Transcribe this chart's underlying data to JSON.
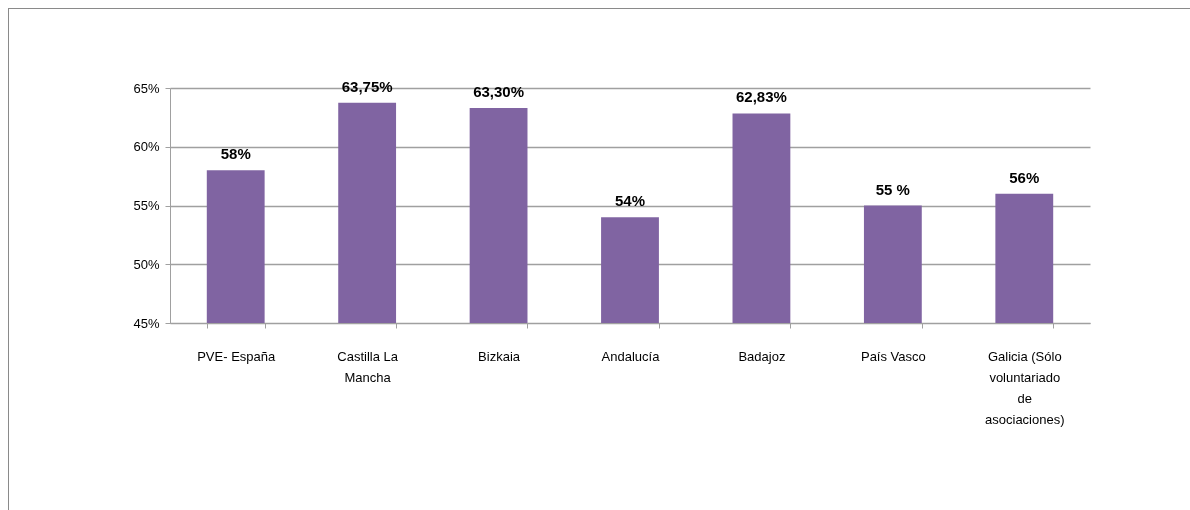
{
  "chart_data": {
    "type": "bar",
    "categories": [
      "PVE- España",
      "Castilla La Mancha",
      "Bizkaia",
      "Andalucía",
      "Badajoz",
      "País Vasco",
      "Galicia (Sólo voluntariado de asociaciones)"
    ],
    "values": [
      58,
      63.75,
      63.3,
      54,
      62.83,
      55,
      56
    ],
    "value_labels": [
      "58%",
      "63,75%",
      "63,30%",
      "54%",
      "62,83%",
      "55 %",
      "56%"
    ],
    "color": "#8064a2",
    "ylim": [
      45,
      65
    ],
    "yticks": [
      {
        "value": 45,
        "label": "45%"
      },
      {
        "value": 50,
        "label": "50%"
      },
      {
        "value": 55,
        "label": "55%"
      },
      {
        "value": 60,
        "label": "60%"
      },
      {
        "value": 65,
        "label": "65%"
      }
    ],
    "grid": "y"
  }
}
